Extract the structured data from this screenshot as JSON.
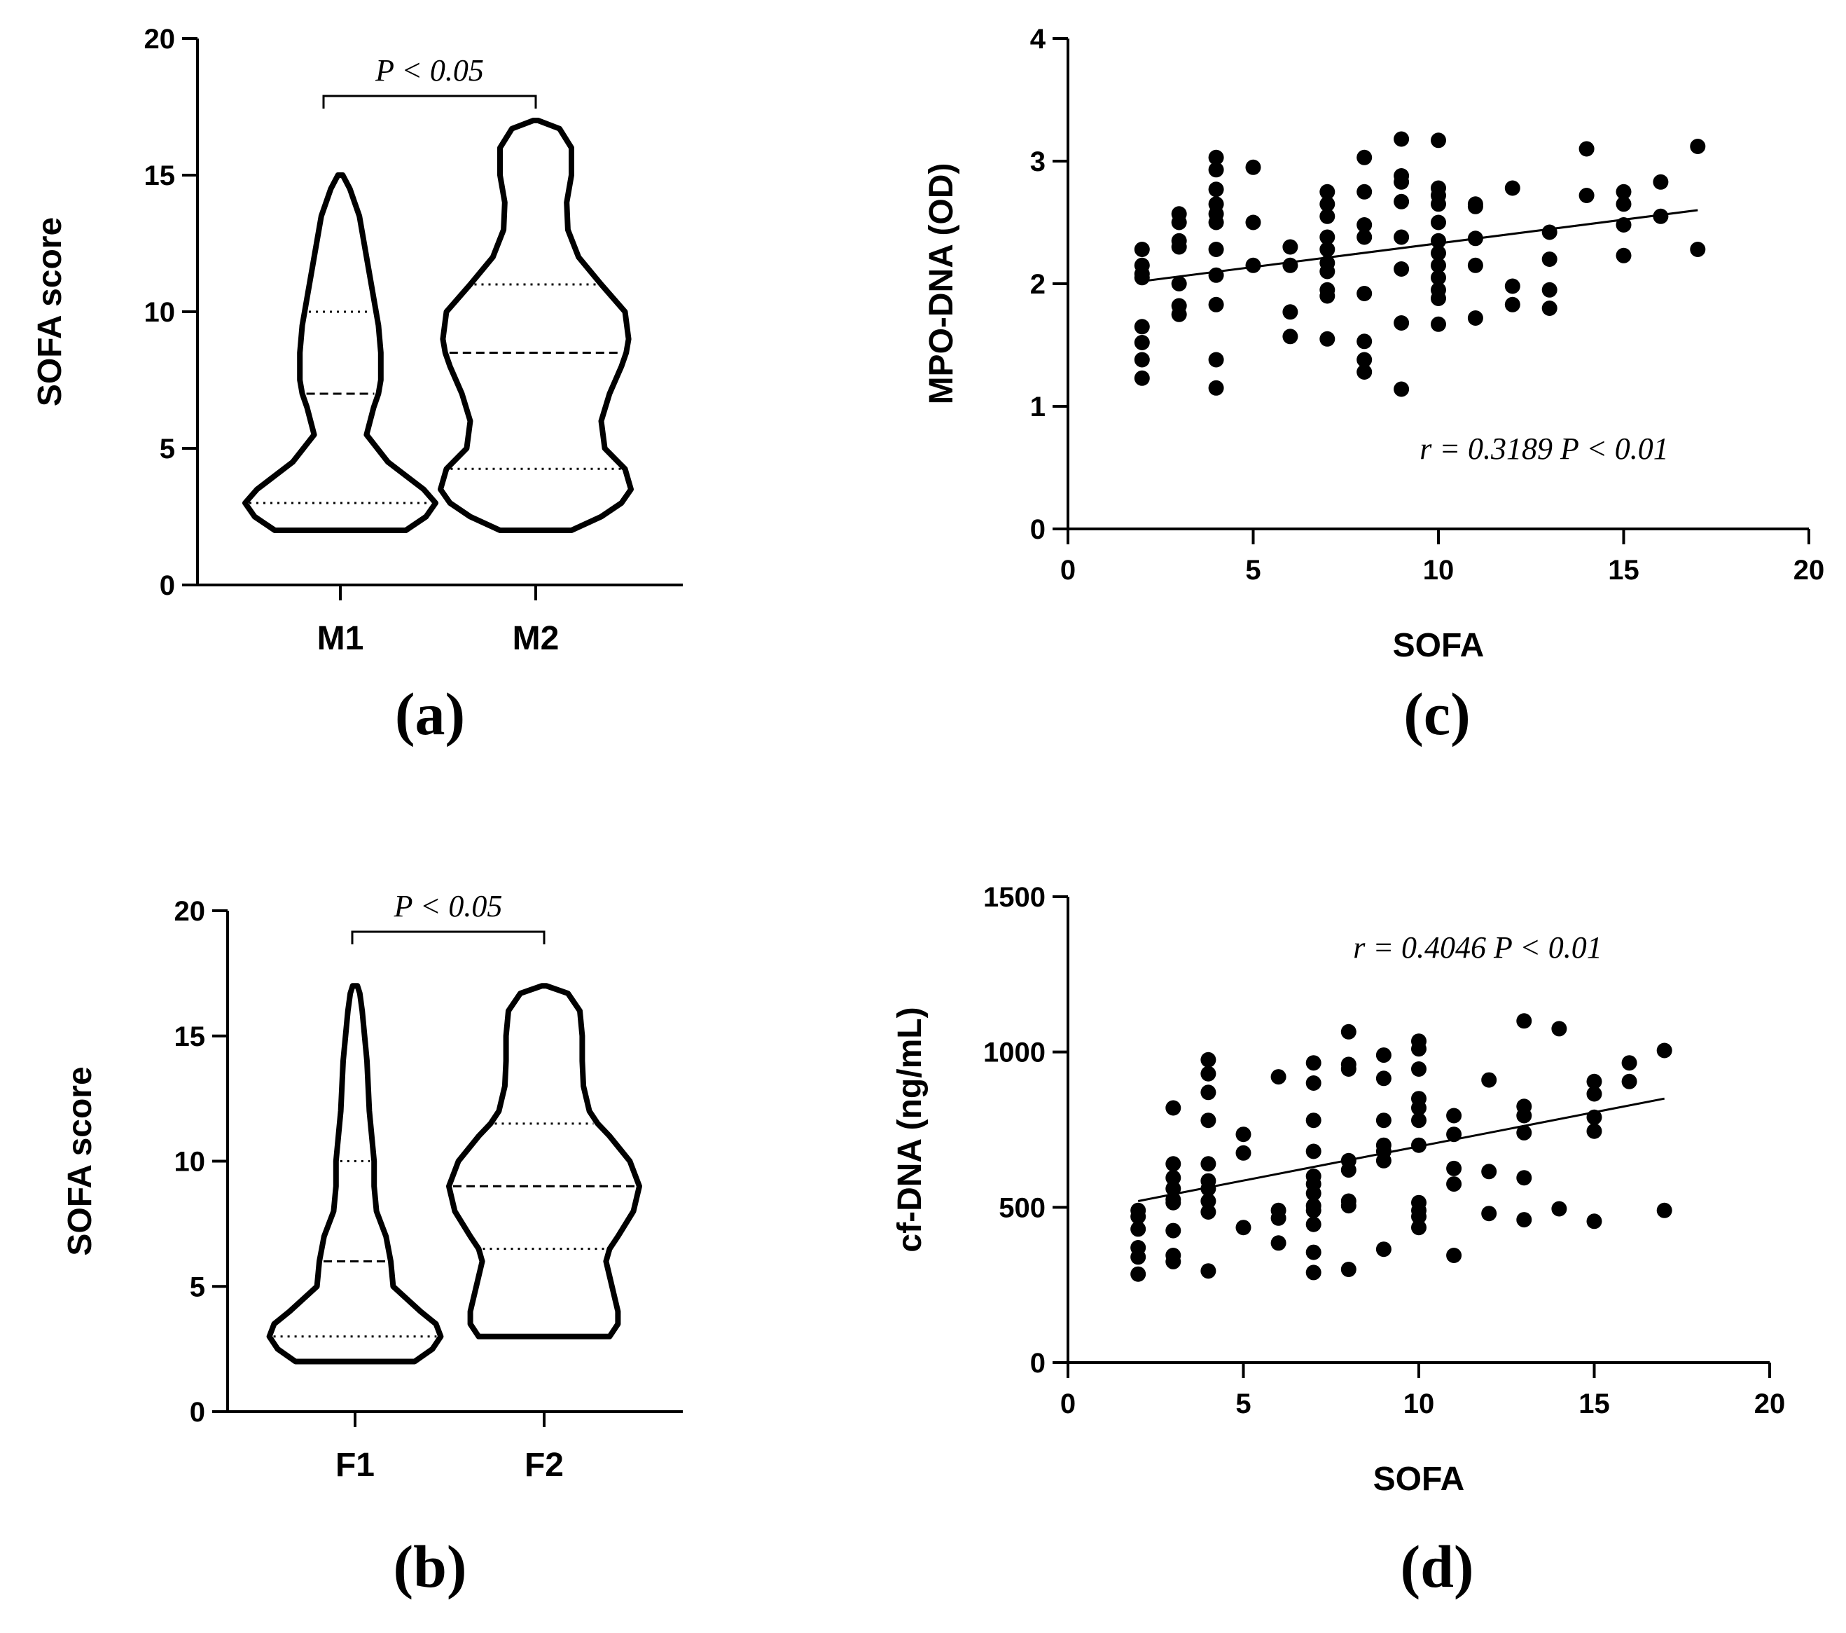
{
  "chart_data": [
    {
      "id": "a",
      "type": "violin",
      "panel_label": "(a)",
      "ylabel": "SOFA score",
      "ylim": [
        0,
        20
      ],
      "yticks": [
        0,
        5,
        10,
        15,
        20
      ],
      "categories": [
        "M1",
        "M2"
      ],
      "annotation": "P < 0.05",
      "violins": [
        {
          "category": "M1",
          "min": 2,
          "max": 15,
          "median": 7,
          "q1": 3,
          "q3": 10,
          "profile": [
            [
              2,
              0.55
            ],
            [
              2.5,
              0.72
            ],
            [
              3,
              0.8
            ],
            [
              3.5,
              0.7
            ],
            [
              4.5,
              0.4
            ],
            [
              5.5,
              0.22
            ],
            [
              6.5,
              0.28
            ],
            [
              7,
              0.32
            ],
            [
              7.5,
              0.34
            ],
            [
              8.5,
              0.34
            ],
            [
              9.5,
              0.32
            ],
            [
              10.5,
              0.28
            ],
            [
              11.5,
              0.24
            ],
            [
              12.5,
              0.2
            ],
            [
              13.5,
              0.16
            ],
            [
              14.5,
              0.08
            ],
            [
              15,
              0.02
            ]
          ]
        },
        {
          "category": "M2",
          "min": 2,
          "max": 17,
          "median": 8.5,
          "q1": 4.25,
          "q3": 11,
          "profile": [
            [
              2,
              0.3
            ],
            [
              2.5,
              0.55
            ],
            [
              3,
              0.72
            ],
            [
              3.5,
              0.8
            ],
            [
              4.25,
              0.75
            ],
            [
              5,
              0.58
            ],
            [
              6,
              0.55
            ],
            [
              7,
              0.62
            ],
            [
              8,
              0.72
            ],
            [
              8.5,
              0.76
            ],
            [
              9,
              0.78
            ],
            [
              10,
              0.75
            ],
            [
              11,
              0.55
            ],
            [
              12,
              0.36
            ],
            [
              13,
              0.27
            ],
            [
              14,
              0.26
            ],
            [
              15,
              0.3
            ],
            [
              16,
              0.3
            ],
            [
              16.7,
              0.2
            ],
            [
              17,
              0.02
            ]
          ]
        }
      ]
    },
    {
      "id": "b",
      "type": "violin",
      "panel_label": "(b)",
      "ylabel": "SOFA score",
      "ylim": [
        0,
        20
      ],
      "yticks": [
        0,
        5,
        10,
        15,
        20
      ],
      "categories": [
        "F1",
        "F2"
      ],
      "annotation": "P < 0.05",
      "violins": [
        {
          "category": "F1",
          "min": 2,
          "max": 17,
          "median": 6,
          "q1": 3,
          "q3": 10,
          "profile": [
            [
              2,
              0.5
            ],
            [
              2.5,
              0.65
            ],
            [
              3,
              0.72
            ],
            [
              3.5,
              0.68
            ],
            [
              4,
              0.55
            ],
            [
              5,
              0.32
            ],
            [
              6,
              0.3
            ],
            [
              7,
              0.26
            ],
            [
              8,
              0.18
            ],
            [
              9,
              0.16
            ],
            [
              10,
              0.16
            ],
            [
              11,
              0.14
            ],
            [
              12,
              0.12
            ],
            [
              13,
              0.11
            ],
            [
              14,
              0.1
            ],
            [
              15,
              0.08
            ],
            [
              16,
              0.06
            ],
            [
              16.7,
              0.04
            ],
            [
              17,
              0.02
            ]
          ]
        },
        {
          "category": "F2",
          "min": 3,
          "max": 17,
          "median": 9,
          "q1": 6.5,
          "q3": 11.5,
          "profile": [
            [
              3,
              0.55
            ],
            [
              3.5,
              0.62
            ],
            [
              4,
              0.62
            ],
            [
              5,
              0.57
            ],
            [
              6,
              0.52
            ],
            [
              6.5,
              0.55
            ],
            [
              7,
              0.62
            ],
            [
              8,
              0.75
            ],
            [
              9,
              0.8
            ],
            [
              10,
              0.72
            ],
            [
              11,
              0.55
            ],
            [
              11.5,
              0.45
            ],
            [
              12,
              0.38
            ],
            [
              13,
              0.33
            ],
            [
              14,
              0.32
            ],
            [
              15,
              0.32
            ],
            [
              16,
              0.3
            ],
            [
              16.7,
              0.2
            ],
            [
              17,
              0.02
            ]
          ]
        }
      ]
    },
    {
      "id": "c",
      "type": "scatter",
      "panel_label": "(c)",
      "xlabel": "SOFA",
      "ylabel": "MPO-DNA (OD)",
      "xlim": [
        0,
        20
      ],
      "ylim": [
        0,
        4
      ],
      "xticks": [
        0,
        5,
        10,
        15,
        20
      ],
      "yticks": [
        0,
        1,
        2,
        3,
        4
      ],
      "annotation": "r = 0.3189  P < 0.01",
      "fit_line": {
        "x": [
          2,
          17
        ],
        "y": [
          2.02,
          2.6
        ]
      },
      "points": [
        [
          2,
          2.28
        ],
        [
          2,
          2.15
        ],
        [
          2,
          2.08
        ],
        [
          2,
          2.05
        ],
        [
          2,
          1.65
        ],
        [
          2,
          1.52
        ],
        [
          2,
          1.38
        ],
        [
          2,
          1.23
        ],
        [
          3,
          2.57
        ],
        [
          3,
          2.5
        ],
        [
          3,
          2.35
        ],
        [
          3,
          2.3
        ],
        [
          3,
          2.0
        ],
        [
          3,
          1.82
        ],
        [
          3,
          1.75
        ],
        [
          4,
          3.03
        ],
        [
          4,
          2.93
        ],
        [
          4,
          2.77
        ],
        [
          4,
          2.65
        ],
        [
          4,
          2.57
        ],
        [
          4,
          2.5
        ],
        [
          4,
          2.28
        ],
        [
          4,
          2.07
        ],
        [
          4,
          1.83
        ],
        [
          4,
          1.38
        ],
        [
          4,
          1.15
        ],
        [
          5,
          2.95
        ],
        [
          5,
          2.5
        ],
        [
          5,
          2.15
        ],
        [
          6,
          2.3
        ],
        [
          6,
          2.15
        ],
        [
          6,
          1.77
        ],
        [
          6,
          1.57
        ],
        [
          7,
          2.75
        ],
        [
          7,
          2.65
        ],
        [
          7,
          2.55
        ],
        [
          7,
          2.38
        ],
        [
          7,
          2.28
        ],
        [
          7,
          2.17
        ],
        [
          7,
          2.1
        ],
        [
          7,
          1.95
        ],
        [
          7,
          1.9
        ],
        [
          7,
          1.55
        ],
        [
          8,
          3.03
        ],
        [
          8,
          2.75
        ],
        [
          8,
          2.48
        ],
        [
          8,
          2.38
        ],
        [
          8,
          1.92
        ],
        [
          8,
          1.53
        ],
        [
          8,
          1.38
        ],
        [
          8,
          1.28
        ],
        [
          9,
          3.18
        ],
        [
          9,
          2.88
        ],
        [
          9,
          2.83
        ],
        [
          9,
          2.67
        ],
        [
          9,
          2.38
        ],
        [
          9,
          2.12
        ],
        [
          9,
          1.68
        ],
        [
          9,
          1.14
        ],
        [
          10,
          3.17
        ],
        [
          10,
          2.78
        ],
        [
          10,
          2.72
        ],
        [
          10,
          2.65
        ],
        [
          10,
          2.5
        ],
        [
          10,
          2.35
        ],
        [
          10,
          2.25
        ],
        [
          10,
          2.15
        ],
        [
          10,
          2.05
        ],
        [
          10,
          1.95
        ],
        [
          10,
          1.88
        ],
        [
          10,
          1.67
        ],
        [
          11,
          2.65
        ],
        [
          11,
          2.63
        ],
        [
          11,
          2.37
        ],
        [
          11,
          2.15
        ],
        [
          11,
          1.72
        ],
        [
          12,
          2.78
        ],
        [
          12,
          1.98
        ],
        [
          12,
          1.83
        ],
        [
          13,
          2.42
        ],
        [
          13,
          2.2
        ],
        [
          13,
          1.95
        ],
        [
          13,
          1.8
        ],
        [
          14,
          3.1
        ],
        [
          14,
          2.72
        ],
        [
          15,
          2.75
        ],
        [
          15,
          2.65
        ],
        [
          15,
          2.48
        ],
        [
          15,
          2.23
        ],
        [
          16,
          2.83
        ],
        [
          16,
          2.55
        ],
        [
          17,
          3.12
        ],
        [
          17,
          2.28
        ]
      ]
    },
    {
      "id": "d",
      "type": "scatter",
      "panel_label": "(d)",
      "xlabel": "SOFA",
      "ylabel": "cf-DNA (ng/mL)",
      "xlim": [
        0,
        20
      ],
      "ylim": [
        0,
        1500
      ],
      "xticks": [
        0,
        5,
        10,
        15,
        20
      ],
      "yticks": [
        0,
        500,
        1000,
        1500
      ],
      "annotation": "r = 0.4046  P < 0.01",
      "fit_line": {
        "x": [
          2,
          17
        ],
        "y": [
          520,
          850
        ]
      },
      "points": [
        [
          2,
          490
        ],
        [
          2,
          470
        ],
        [
          2,
          430
        ],
        [
          2,
          370
        ],
        [
          2,
          340
        ],
        [
          2,
          285
        ],
        [
          3,
          820
        ],
        [
          3,
          640
        ],
        [
          3,
          595
        ],
        [
          3,
          560
        ],
        [
          3,
          525
        ],
        [
          3,
          515
        ],
        [
          3,
          425
        ],
        [
          3,
          345
        ],
        [
          3,
          325
        ],
        [
          4,
          975
        ],
        [
          4,
          930
        ],
        [
          4,
          870
        ],
        [
          4,
          780
        ],
        [
          4,
          640
        ],
        [
          4,
          585
        ],
        [
          4,
          560
        ],
        [
          4,
          520
        ],
        [
          4,
          485
        ],
        [
          4,
          295
        ],
        [
          5,
          735
        ],
        [
          5,
          675
        ],
        [
          5,
          435
        ],
        [
          6,
          920
        ],
        [
          6,
          490
        ],
        [
          6,
          465
        ],
        [
          6,
          385
        ],
        [
          7,
          965
        ],
        [
          7,
          900
        ],
        [
          7,
          780
        ],
        [
          7,
          680
        ],
        [
          7,
          600
        ],
        [
          7,
          575
        ],
        [
          7,
          545
        ],
        [
          7,
          505
        ],
        [
          7,
          490
        ],
        [
          7,
          445
        ],
        [
          7,
          355
        ],
        [
          7,
          290
        ],
        [
          8,
          1065
        ],
        [
          8,
          960
        ],
        [
          8,
          945
        ],
        [
          8,
          650
        ],
        [
          8,
          620
        ],
        [
          8,
          520
        ],
        [
          8,
          505
        ],
        [
          8,
          300
        ],
        [
          9,
          990
        ],
        [
          9,
          915
        ],
        [
          9,
          780
        ],
        [
          9,
          700
        ],
        [
          9,
          680
        ],
        [
          9,
          650
        ],
        [
          9,
          365
        ],
        [
          10,
          1035
        ],
        [
          10,
          1010
        ],
        [
          10,
          945
        ],
        [
          10,
          850
        ],
        [
          10,
          820
        ],
        [
          10,
          780
        ],
        [
          10,
          700
        ],
        [
          10,
          515
        ],
        [
          10,
          490
        ],
        [
          10,
          470
        ],
        [
          10,
          435
        ],
        [
          11,
          795
        ],
        [
          11,
          735
        ],
        [
          11,
          625
        ],
        [
          11,
          575
        ],
        [
          11,
          345
        ],
        [
          12,
          910
        ],
        [
          12,
          615
        ],
        [
          12,
          480
        ],
        [
          13,
          1100
        ],
        [
          13,
          825
        ],
        [
          13,
          795
        ],
        [
          13,
          740
        ],
        [
          13,
          595
        ],
        [
          13,
          460
        ],
        [
          14,
          1075
        ],
        [
          14,
          495
        ],
        [
          15,
          905
        ],
        [
          15,
          865
        ],
        [
          15,
          790
        ],
        [
          15,
          745
        ],
        [
          15,
          455
        ],
        [
          16,
          965
        ],
        [
          16,
          905
        ],
        [
          17,
          1005
        ],
        [
          17,
          490
        ]
      ]
    }
  ]
}
